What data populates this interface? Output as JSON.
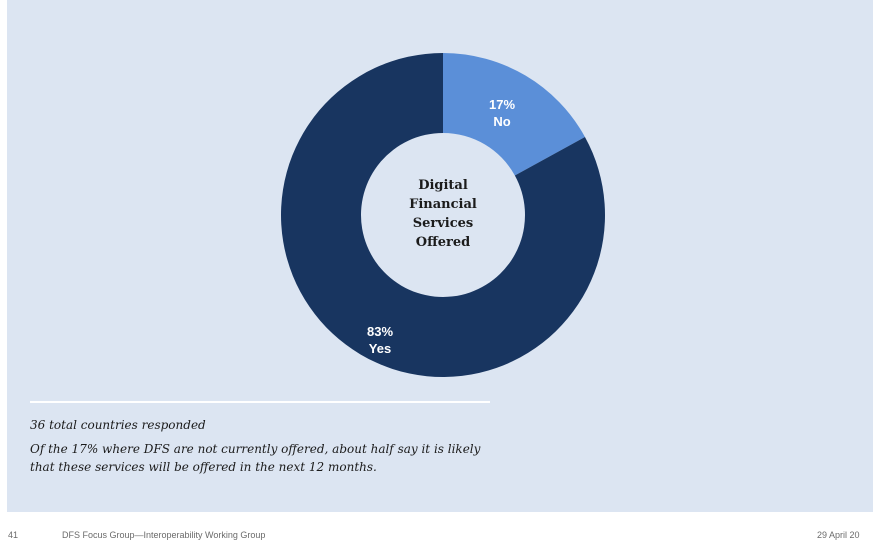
{
  "chart_data": {
    "type": "pie",
    "title": "Digital Financial Services Offered",
    "title_lines": [
      "Digital",
      "Financial",
      "Services",
      "Offered"
    ],
    "labels": [
      "No",
      "Yes"
    ],
    "values": [
      17,
      83
    ],
    "value_labels": [
      "17%",
      "83%"
    ],
    "colors": [
      "#5b8fd8",
      "#183560"
    ],
    "donut": true
  },
  "notes": {
    "line1": "36 total countries responded",
    "line2": "Of the 17% where DFS are not currently offered, about half say it is likely that these services will be offered in the next 12 months."
  },
  "footer": {
    "page": "41",
    "title": "DFS Focus Group—Interoperability Working Group",
    "date": "29 April 20"
  }
}
